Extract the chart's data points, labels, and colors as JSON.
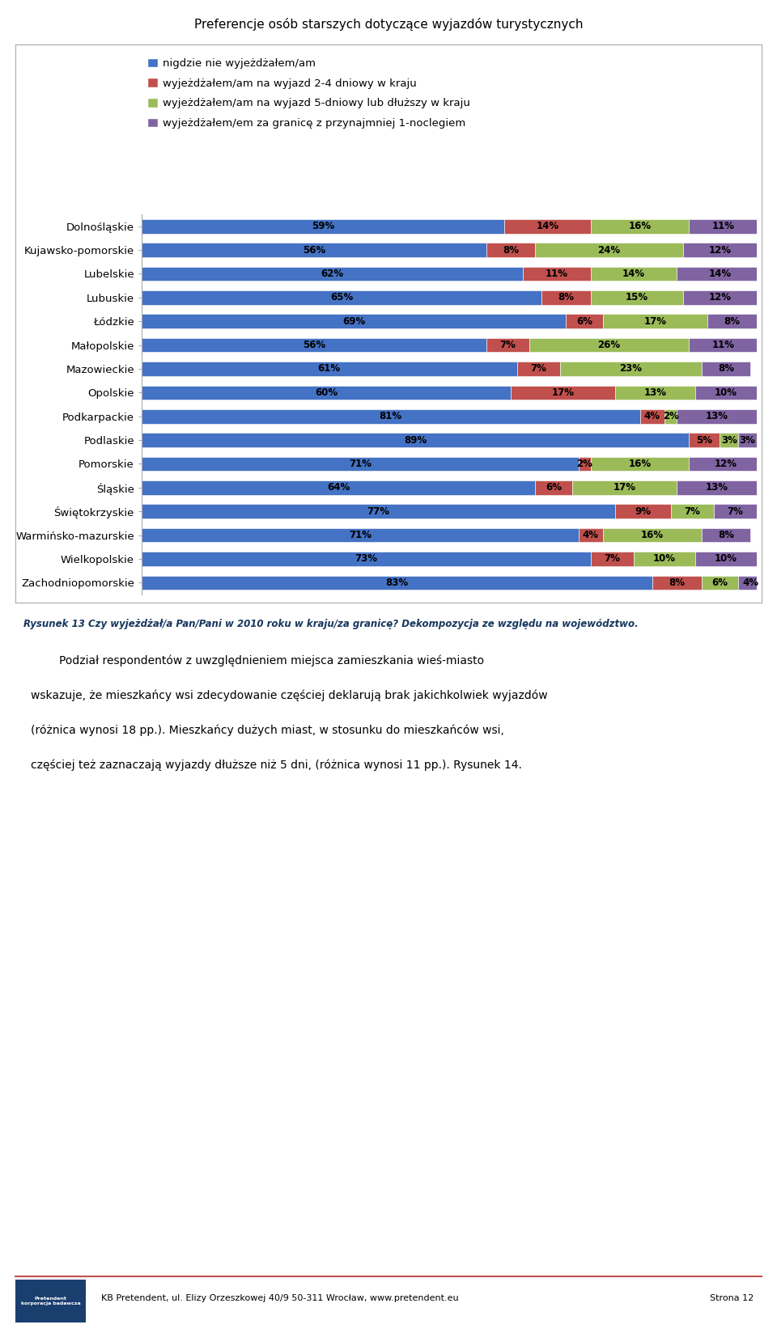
{
  "title": "Preferencje osób starszych dotyczące wyjazdów turystycznych",
  "categories": [
    "Dolnośląskie",
    "Kujawsko-pomorskie",
    "Lubelskie",
    "Lubuskie",
    "Łódzkie",
    "Małopolskie",
    "Mazowieckie",
    "Opolskie",
    "Podkarpackie",
    "Podlaskie",
    "Pomorskie",
    "Śląskie",
    "Świętokrzyskie",
    "Warmińsko-mazurskie",
    "Wielkopolskie",
    "Zachodniopomorskie"
  ],
  "series": [
    {
      "name": "nigdzie nie wyjeżdżałem/am",
      "color": "#4472C4",
      "values": [
        59,
        56,
        62,
        65,
        69,
        56,
        61,
        60,
        81,
        89,
        71,
        64,
        77,
        71,
        73,
        83
      ]
    },
    {
      "name": "wyjeżdżałem/am na wyjazd 2-4 dniowy w kraju",
      "color": "#C0504D",
      "values": [
        14,
        8,
        11,
        8,
        6,
        7,
        7,
        17,
        4,
        5,
        2,
        6,
        9,
        4,
        7,
        8
      ]
    },
    {
      "name": "wyjeżdżałem/am na wyjazd 5-dniowy lub dłuższy w kraju",
      "color": "#9BBB59",
      "values": [
        16,
        24,
        14,
        15,
        17,
        26,
        23,
        13,
        2,
        3,
        16,
        17,
        7,
        16,
        10,
        6
      ]
    },
    {
      "name": "wyjeżdżałem/em za granicę z przynajmniej 1-noclegiem",
      "color": "#8064A2",
      "values": [
        11,
        12,
        14,
        12,
        8,
        11,
        8,
        10,
        13,
        3,
        12,
        13,
        7,
        8,
        10,
        4
      ]
    }
  ],
  "caption": "Rysunek 13 Czy wyjeżdżał/a Pan/Pani w 2010 roku w kraju/za granicę? Dekompozycja ze względu na województwo.",
  "body_lines": [
    "        Podział respondentów z uwzględnieniem miejsca zamieszkania wieś-miasto",
    "wskazuje, że mieszkańcy wsi zdecydowanie częściej deklarują brak jakichkolwiek wyjazdów",
    "(różnica wynosi 18 pp.). Mieszkańcy dużych miast, w stosunku do mieszkańców wsi,",
    "częściej też zaznaczają wyjazdy dłuższe niż 5 dni, (różnica wynosi 11 pp.). Rysunek 14."
  ],
  "footer_text": "KB Pretendent, ul. Elizy Orzeszkowej 40/9 50-311 Wrocław, www.pretendent.eu",
  "footer_page": "Strona 12",
  "bg_color": "#FFFFFF",
  "bar_height": 0.6,
  "label_fontsize": 8.5,
  "tick_fontsize": 9.5,
  "title_fontsize": 11
}
